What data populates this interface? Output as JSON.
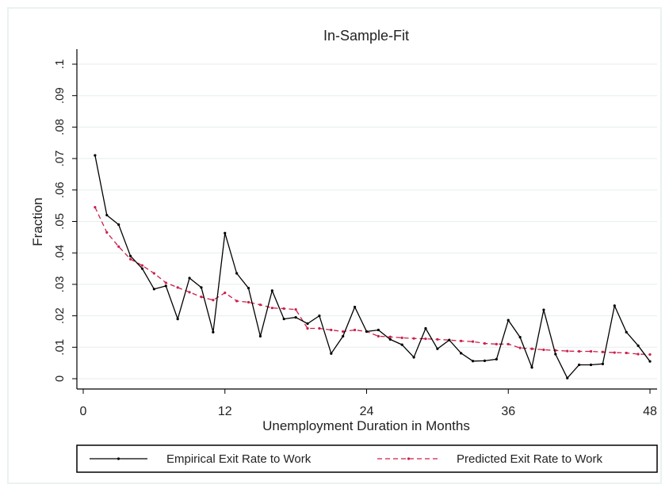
{
  "chart_data": {
    "type": "line",
    "title": "In-Sample-Fit",
    "xlabel": "Unemployment Duration in Months",
    "ylabel": "Fraction",
    "xlim": [
      0,
      48
    ],
    "ylim": [
      0,
      0.1
    ],
    "x_ticks": [
      0,
      12,
      24,
      36,
      48
    ],
    "x_tick_labels": [
      "0",
      "12",
      "24",
      "36",
      "48"
    ],
    "y_ticks": [
      0,
      0.01,
      0.02,
      0.03,
      0.04,
      0.05,
      0.06,
      0.07,
      0.08,
      0.09,
      0.1
    ],
    "y_tick_labels": [
      "0",
      ".01",
      ".02",
      ".03",
      ".04",
      ".05",
      ".06",
      ".07",
      ".08",
      ".09",
      ".1"
    ],
    "grid": true,
    "legend_position": "bottom",
    "x": [
      1,
      2,
      3,
      4,
      5,
      6,
      7,
      8,
      9,
      10,
      11,
      12,
      13,
      14,
      15,
      16,
      17,
      18,
      19,
      20,
      21,
      22,
      23,
      24,
      25,
      26,
      27,
      28,
      29,
      30,
      31,
      32,
      33,
      34,
      35,
      36,
      37,
      38,
      39,
      40,
      41,
      42,
      43,
      44,
      45,
      46,
      47,
      48
    ],
    "series": [
      {
        "name": "Empirical Exit Rate to Work",
        "color": "#000000",
        "style": "solid",
        "values": [
          0.071,
          0.052,
          0.049,
          0.039,
          0.035,
          0.0285,
          0.0295,
          0.019,
          0.032,
          0.029,
          0.0148,
          0.0463,
          0.0335,
          0.0288,
          0.0135,
          0.028,
          0.019,
          0.0195,
          0.0175,
          0.02,
          0.008,
          0.0135,
          0.0228,
          0.015,
          0.0155,
          0.0125,
          0.0108,
          0.0068,
          0.016,
          0.0095,
          0.0123,
          0.0081,
          0.0056,
          0.0057,
          0.0062,
          0.0186,
          0.0132,
          0.0036,
          0.0219,
          0.0078,
          0.0002,
          0.0044,
          0.0044,
          0.0047,
          0.0232,
          0.0148,
          0.0105,
          0.0055
        ]
      },
      {
        "name": "Predicted Exit Rate to Work",
        "color": "#cc1f4a",
        "style": "dashed",
        "values": [
          0.0545,
          0.0465,
          0.042,
          0.038,
          0.036,
          0.0335,
          0.0305,
          0.029,
          0.0275,
          0.026,
          0.025,
          0.0273,
          0.0247,
          0.0243,
          0.0235,
          0.0225,
          0.0223,
          0.022,
          0.016,
          0.016,
          0.0155,
          0.015,
          0.0155,
          0.015,
          0.0135,
          0.0133,
          0.013,
          0.0128,
          0.0127,
          0.0125,
          0.0123,
          0.012,
          0.0118,
          0.0112,
          0.011,
          0.011,
          0.0098,
          0.0095,
          0.0092,
          0.009,
          0.0088,
          0.0087,
          0.0087,
          0.0085,
          0.0083,
          0.0082,
          0.0078,
          0.0077
        ]
      }
    ]
  }
}
